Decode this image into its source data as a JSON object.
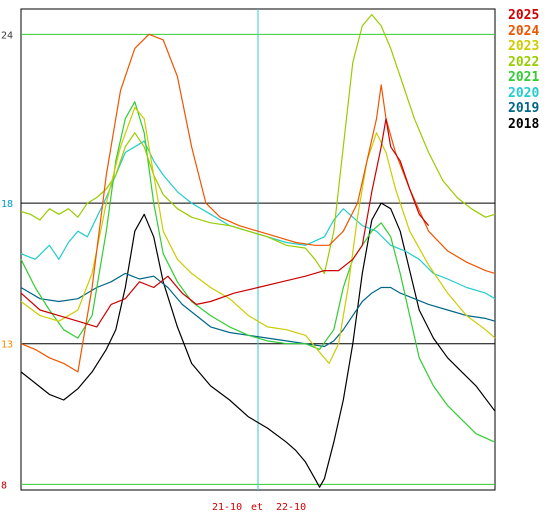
{
  "chart_data": {
    "type": "line",
    "title": "",
    "xlabel": "",
    "ylabel": "",
    "ylim": [
      7.8,
      24.9
    ],
    "y_ticks": [
      {
        "label": "24",
        "value": 24,
        "color": "#404040",
        "line_color": "#33cc33"
      },
      {
        "label": "18",
        "value": 18,
        "color": "#0099cc",
        "line_color": "#000000"
      },
      {
        "label": "13",
        "value": 13,
        "color": "#ff8800",
        "line_color": "#000000"
      },
      {
        "label": "8",
        "value": 8,
        "color": "#cc0000",
        "line_color": "#33cc33"
      }
    ],
    "x_label_left": "21-10",
    "x_label_mid": "et",
    "x_label_right": "22-10",
    "day_divider_color": "#33cccc",
    "grid": false,
    "legend_position": "right",
    "series": [
      {
        "name": "2025",
        "color": "#cc0000",
        "points": [
          [
            0,
            14.8
          ],
          [
            0.04,
            14.2
          ],
          [
            0.08,
            14.0
          ],
          [
            0.12,
            13.8
          ],
          [
            0.16,
            13.6
          ],
          [
            0.19,
            14.4
          ],
          [
            0.22,
            14.6
          ],
          [
            0.25,
            15.2
          ],
          [
            0.28,
            15.0
          ],
          [
            0.31,
            15.4
          ],
          [
            0.34,
            14.8
          ],
          [
            0.37,
            14.4
          ],
          [
            0.4,
            14.5
          ],
          [
            0.45,
            14.8
          ],
          [
            0.5,
            15.0
          ],
          [
            0.55,
            15.2
          ],
          [
            0.6,
            15.4
          ],
          [
            0.64,
            15.6
          ],
          [
            0.67,
            15.6
          ],
          [
            0.7,
            16.0
          ],
          [
            0.72,
            16.5
          ],
          [
            0.74,
            18.4
          ],
          [
            0.76,
            20.0
          ],
          [
            0.77,
            21.0
          ],
          [
            0.78,
            20.0
          ],
          [
            0.8,
            19.5
          ],
          [
            0.82,
            18.5
          ],
          [
            0.84,
            17.6
          ],
          [
            0.86,
            17.2
          ]
        ]
      },
      {
        "name": "2024",
        "color": "#ee5500",
        "points": [
          [
            0,
            13.0
          ],
          [
            0.03,
            12.8
          ],
          [
            0.06,
            12.5
          ],
          [
            0.09,
            12.3
          ],
          [
            0.12,
            12.0
          ],
          [
            0.15,
            15.0
          ],
          [
            0.18,
            19.0
          ],
          [
            0.21,
            22.0
          ],
          [
            0.24,
            23.5
          ],
          [
            0.27,
            24.0
          ],
          [
            0.3,
            23.8
          ],
          [
            0.33,
            22.5
          ],
          [
            0.36,
            20.0
          ],
          [
            0.39,
            18.0
          ],
          [
            0.42,
            17.5
          ],
          [
            0.46,
            17.2
          ],
          [
            0.5,
            17.0
          ],
          [
            0.54,
            16.8
          ],
          [
            0.58,
            16.6
          ],
          [
            0.62,
            16.5
          ],
          [
            0.65,
            16.5
          ],
          [
            0.68,
            17.0
          ],
          [
            0.71,
            18.0
          ],
          [
            0.73,
            19.5
          ],
          [
            0.75,
            21.0
          ],
          [
            0.76,
            22.2
          ],
          [
            0.77,
            21.0
          ],
          [
            0.79,
            19.8
          ],
          [
            0.82,
            18.5
          ],
          [
            0.86,
            17.0
          ],
          [
            0.9,
            16.3
          ],
          [
            0.94,
            15.9
          ],
          [
            0.98,
            15.6
          ],
          [
            1.0,
            15.5
          ]
        ]
      },
      {
        "name": "2023",
        "color": "#cccc00",
        "points": [
          [
            0,
            14.5
          ],
          [
            0.04,
            14.0
          ],
          [
            0.08,
            13.8
          ],
          [
            0.12,
            14.2
          ],
          [
            0.15,
            15.5
          ],
          [
            0.18,
            18.0
          ],
          [
            0.21,
            20.0
          ],
          [
            0.24,
            21.4
          ],
          [
            0.26,
            21.0
          ],
          [
            0.28,
            19.0
          ],
          [
            0.3,
            17.0
          ],
          [
            0.33,
            16.0
          ],
          [
            0.36,
            15.5
          ],
          [
            0.4,
            15.0
          ],
          [
            0.44,
            14.6
          ],
          [
            0.48,
            14.0
          ],
          [
            0.52,
            13.6
          ],
          [
            0.56,
            13.5
          ],
          [
            0.6,
            13.3
          ],
          [
            0.63,
            12.7
          ],
          [
            0.65,
            12.3
          ],
          [
            0.67,
            13.0
          ],
          [
            0.69,
            15.0
          ],
          [
            0.71,
            17.5
          ],
          [
            0.73,
            19.5
          ],
          [
            0.75,
            20.5
          ],
          [
            0.77,
            19.8
          ],
          [
            0.79,
            18.5
          ],
          [
            0.82,
            17.0
          ],
          [
            0.86,
            15.8
          ],
          [
            0.9,
            14.8
          ],
          [
            0.94,
            14.0
          ],
          [
            0.98,
            13.5
          ],
          [
            1.0,
            13.2
          ]
        ]
      },
      {
        "name": "2022",
        "color": "#99cc00",
        "points": [
          [
            0,
            17.7
          ],
          [
            0.02,
            17.6
          ],
          [
            0.04,
            17.4
          ],
          [
            0.06,
            17.8
          ],
          [
            0.08,
            17.6
          ],
          [
            0.1,
            17.8
          ],
          [
            0.12,
            17.5
          ],
          [
            0.14,
            18.0
          ],
          [
            0.16,
            18.2
          ],
          [
            0.18,
            18.5
          ],
          [
            0.2,
            19.0
          ],
          [
            0.22,
            20.0
          ],
          [
            0.24,
            20.5
          ],
          [
            0.26,
            20.0
          ],
          [
            0.28,
            19.0
          ],
          [
            0.3,
            18.3
          ],
          [
            0.33,
            17.8
          ],
          [
            0.36,
            17.5
          ],
          [
            0.4,
            17.3
          ],
          [
            0.44,
            17.2
          ],
          [
            0.48,
            17.0
          ],
          [
            0.52,
            16.8
          ],
          [
            0.56,
            16.5
          ],
          [
            0.6,
            16.4
          ],
          [
            0.62,
            16.0
          ],
          [
            0.64,
            15.5
          ],
          [
            0.66,
            17.0
          ],
          [
            0.68,
            20.0
          ],
          [
            0.7,
            23.0
          ],
          [
            0.72,
            24.3
          ],
          [
            0.74,
            24.7
          ],
          [
            0.76,
            24.3
          ],
          [
            0.78,
            23.5
          ],
          [
            0.8,
            22.5
          ],
          [
            0.83,
            21.0
          ],
          [
            0.86,
            19.8
          ],
          [
            0.89,
            18.8
          ],
          [
            0.92,
            18.2
          ],
          [
            0.95,
            17.8
          ],
          [
            0.98,
            17.5
          ],
          [
            1.0,
            17.6
          ]
        ]
      },
      {
        "name": "2021",
        "color": "#33cc33",
        "points": [
          [
            0,
            16.0
          ],
          [
            0.03,
            15.0
          ],
          [
            0.06,
            14.2
          ],
          [
            0.09,
            13.5
          ],
          [
            0.12,
            13.2
          ],
          [
            0.15,
            14.0
          ],
          [
            0.18,
            17.0
          ],
          [
            0.2,
            19.5
          ],
          [
            0.22,
            21.0
          ],
          [
            0.24,
            21.6
          ],
          [
            0.26,
            20.5
          ],
          [
            0.28,
            18.0
          ],
          [
            0.3,
            16.2
          ],
          [
            0.33,
            15.2
          ],
          [
            0.36,
            14.5
          ],
          [
            0.4,
            14.0
          ],
          [
            0.44,
            13.6
          ],
          [
            0.48,
            13.3
          ],
          [
            0.52,
            13.1
          ],
          [
            0.56,
            13.0
          ],
          [
            0.6,
            13.0
          ],
          [
            0.63,
            12.8
          ],
          [
            0.66,
            13.5
          ],
          [
            0.68,
            15.0
          ],
          [
            0.7,
            16.0
          ],
          [
            0.72,
            16.5
          ],
          [
            0.74,
            17.0
          ],
          [
            0.76,
            17.3
          ],
          [
            0.78,
            16.8
          ],
          [
            0.8,
            15.5
          ],
          [
            0.82,
            14.0
          ],
          [
            0.84,
            12.5
          ],
          [
            0.87,
            11.5
          ],
          [
            0.9,
            10.8
          ],
          [
            0.93,
            10.3
          ],
          [
            0.96,
            9.8
          ],
          [
            1.0,
            9.5
          ]
        ]
      },
      {
        "name": "2020",
        "color": "#22cccc",
        "points": [
          [
            0,
            16.2
          ],
          [
            0.03,
            16.0
          ],
          [
            0.06,
            16.5
          ],
          [
            0.08,
            16.0
          ],
          [
            0.1,
            16.6
          ],
          [
            0.12,
            17.0
          ],
          [
            0.14,
            16.8
          ],
          [
            0.16,
            17.5
          ],
          [
            0.18,
            18.2
          ],
          [
            0.2,
            19.0
          ],
          [
            0.22,
            19.8
          ],
          [
            0.24,
            20.0
          ],
          [
            0.26,
            20.2
          ],
          [
            0.28,
            19.5
          ],
          [
            0.3,
            19.0
          ],
          [
            0.33,
            18.4
          ],
          [
            0.36,
            18.0
          ],
          [
            0.4,
            17.6
          ],
          [
            0.44,
            17.2
          ],
          [
            0.48,
            17.0
          ],
          [
            0.52,
            16.8
          ],
          [
            0.56,
            16.6
          ],
          [
            0.6,
            16.5
          ],
          [
            0.64,
            16.8
          ],
          [
            0.66,
            17.4
          ],
          [
            0.68,
            17.8
          ],
          [
            0.7,
            17.5
          ],
          [
            0.72,
            17.2
          ],
          [
            0.75,
            17.0
          ],
          [
            0.78,
            16.5
          ],
          [
            0.81,
            16.3
          ],
          [
            0.84,
            16.0
          ],
          [
            0.87,
            15.5
          ],
          [
            0.9,
            15.3
          ],
          [
            0.94,
            15.0
          ],
          [
            0.98,
            14.8
          ],
          [
            1.0,
            14.6
          ]
        ]
      },
      {
        "name": "2019",
        "color": "#006688",
        "points": [
          [
            0,
            15.0
          ],
          [
            0.04,
            14.6
          ],
          [
            0.08,
            14.5
          ],
          [
            0.12,
            14.6
          ],
          [
            0.16,
            15.0
          ],
          [
            0.19,
            15.2
          ],
          [
            0.22,
            15.5
          ],
          [
            0.25,
            15.3
          ],
          [
            0.28,
            15.4
          ],
          [
            0.31,
            15.0
          ],
          [
            0.34,
            14.4
          ],
          [
            0.37,
            14.0
          ],
          [
            0.4,
            13.6
          ],
          [
            0.44,
            13.4
          ],
          [
            0.48,
            13.3
          ],
          [
            0.52,
            13.2
          ],
          [
            0.56,
            13.1
          ],
          [
            0.6,
            13.0
          ],
          [
            0.64,
            12.9
          ],
          [
            0.66,
            13.1
          ],
          [
            0.68,
            13.5
          ],
          [
            0.7,
            14.0
          ],
          [
            0.72,
            14.5
          ],
          [
            0.74,
            14.8
          ],
          [
            0.76,
            15.0
          ],
          [
            0.78,
            15.0
          ],
          [
            0.8,
            14.8
          ],
          [
            0.83,
            14.6
          ],
          [
            0.86,
            14.4
          ],
          [
            0.9,
            14.2
          ],
          [
            0.94,
            14.0
          ],
          [
            0.98,
            13.9
          ],
          [
            1.0,
            13.8
          ]
        ]
      },
      {
        "name": "2018",
        "color": "#000000",
        "points": [
          [
            0,
            12.0
          ],
          [
            0.03,
            11.6
          ],
          [
            0.06,
            11.2
          ],
          [
            0.09,
            11.0
          ],
          [
            0.12,
            11.4
          ],
          [
            0.15,
            12.0
          ],
          [
            0.18,
            12.8
          ],
          [
            0.2,
            13.5
          ],
          [
            0.22,
            15.0
          ],
          [
            0.24,
            17.0
          ],
          [
            0.26,
            17.6
          ],
          [
            0.28,
            16.8
          ],
          [
            0.3,
            15.2
          ],
          [
            0.33,
            13.6
          ],
          [
            0.36,
            12.3
          ],
          [
            0.4,
            11.5
          ],
          [
            0.44,
            11.0
          ],
          [
            0.48,
            10.4
          ],
          [
            0.52,
            10.0
          ],
          [
            0.56,
            9.5
          ],
          [
            0.58,
            9.2
          ],
          [
            0.6,
            8.8
          ],
          [
            0.62,
            8.2
          ],
          [
            0.63,
            7.9
          ],
          [
            0.64,
            8.2
          ],
          [
            0.66,
            9.5
          ],
          [
            0.68,
            11.0
          ],
          [
            0.7,
            13.0
          ],
          [
            0.72,
            15.5
          ],
          [
            0.74,
            17.4
          ],
          [
            0.76,
            18.0
          ],
          [
            0.78,
            17.8
          ],
          [
            0.8,
            17.0
          ],
          [
            0.82,
            15.6
          ],
          [
            0.84,
            14.2
          ],
          [
            0.87,
            13.2
          ],
          [
            0.9,
            12.5
          ],
          [
            0.93,
            12.0
          ],
          [
            0.96,
            11.5
          ],
          [
            1.0,
            10.6
          ]
        ]
      }
    ]
  }
}
